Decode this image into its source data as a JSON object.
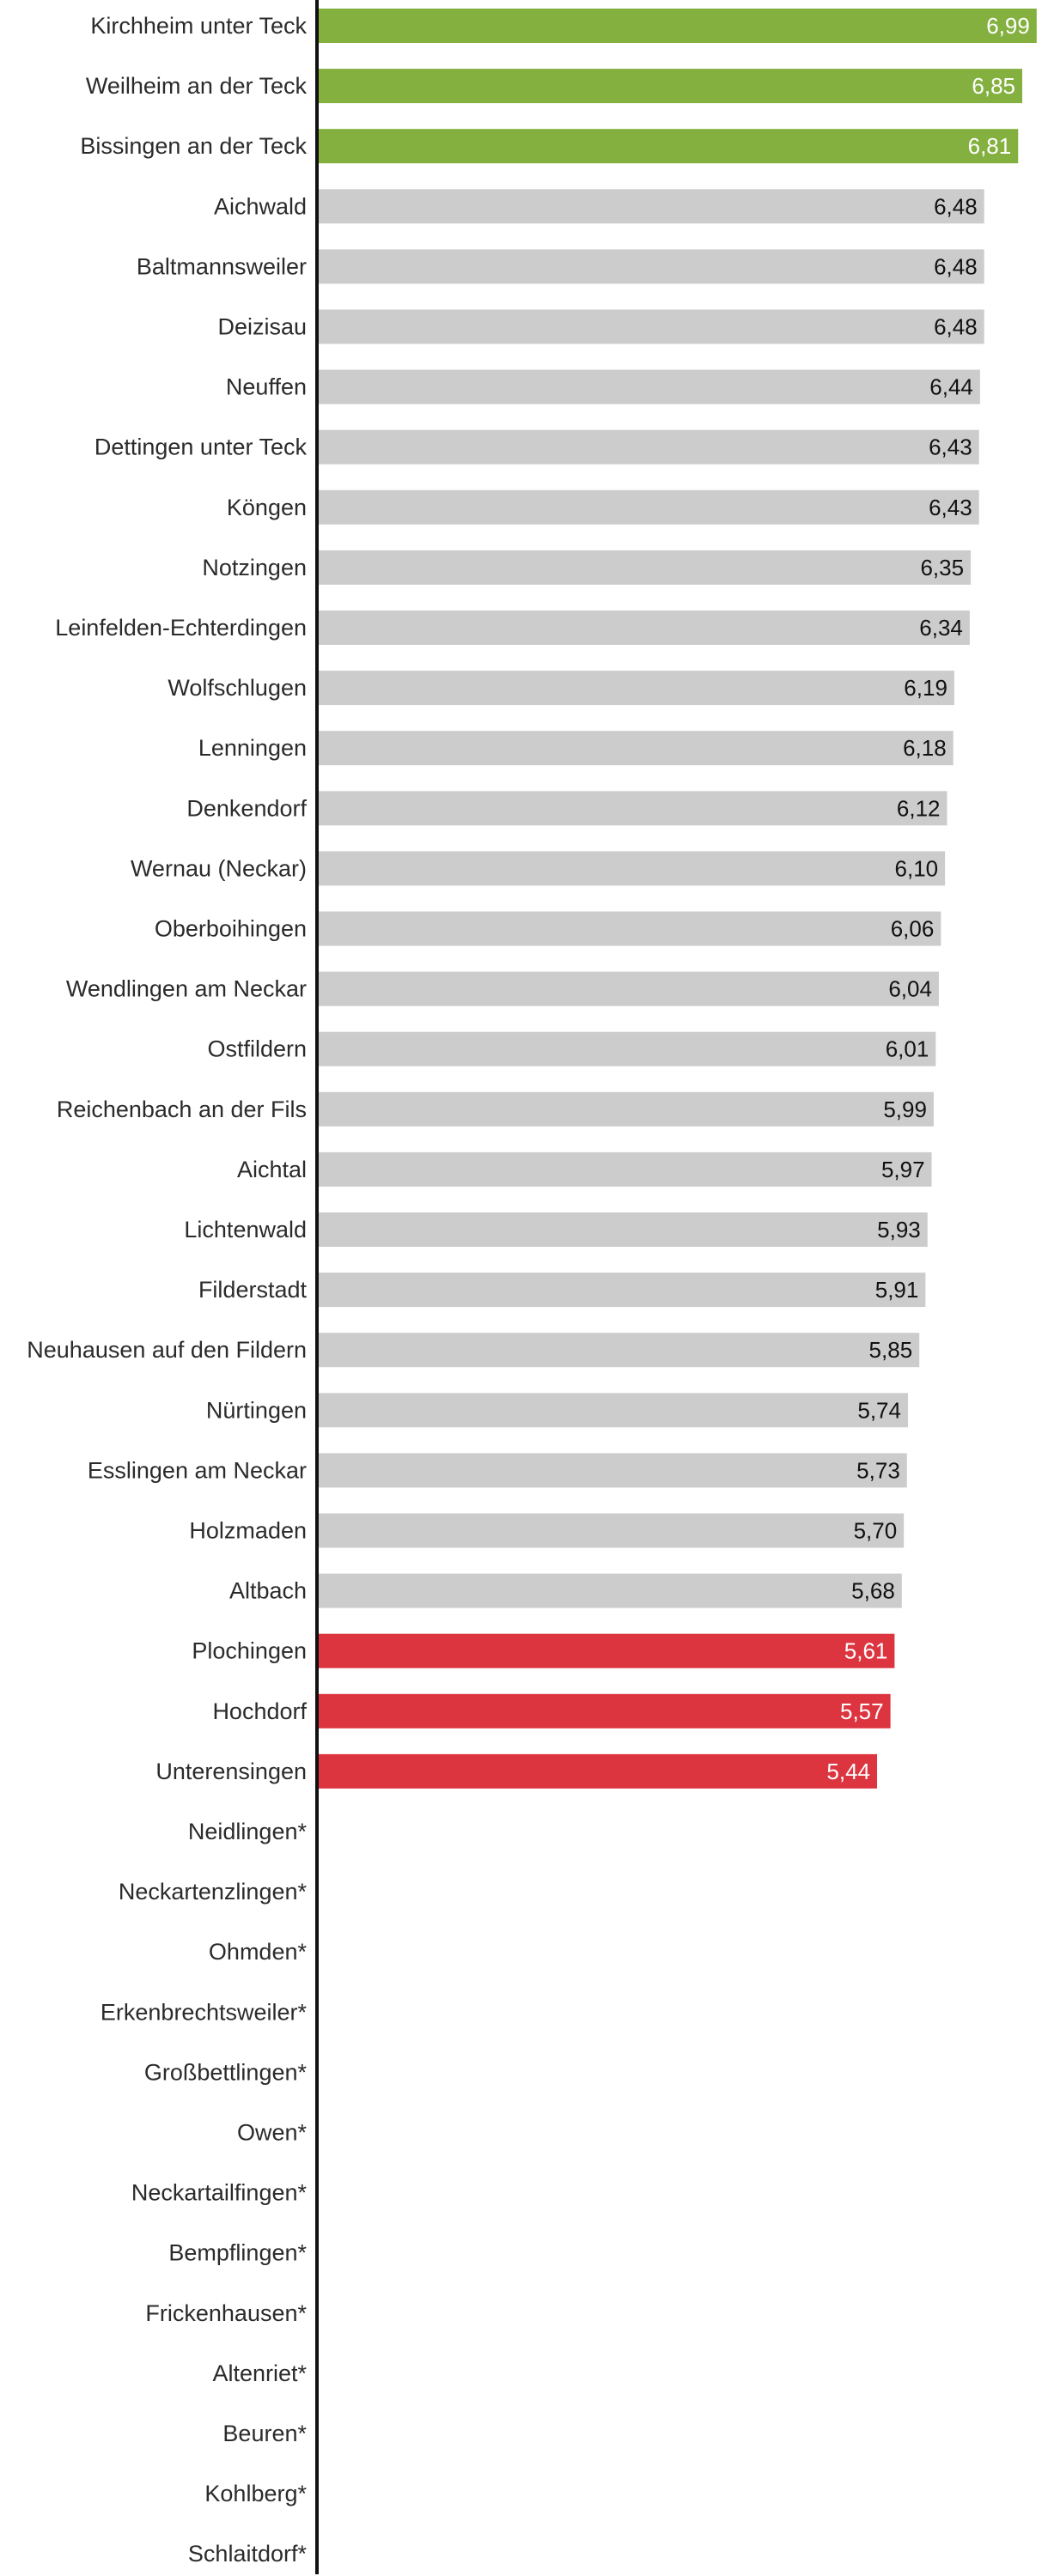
{
  "chart_data": {
    "type": "bar",
    "orientation": "horizontal",
    "title": "",
    "xlabel": "",
    "ylabel": "",
    "xlim": [
      0,
      7
    ],
    "grid": false,
    "legend": "none",
    "colors": {
      "top": "#84b040",
      "middle": "#cccccc",
      "bottom": "#dc3540",
      "axis": "#111111",
      "label_text": "#2b2b2b",
      "value_text_dark": "#111111",
      "value_text_light": "#ffffff"
    },
    "bars": [
      {
        "category": "Kirchheim unter Teck",
        "value": 6.99,
        "display": "6,99",
        "group": "top"
      },
      {
        "category": "Weilheim an der Teck",
        "value": 6.85,
        "display": "6,85",
        "group": "top"
      },
      {
        "category": "Bissingen an der Teck",
        "value": 6.81,
        "display": "6,81",
        "group": "top"
      },
      {
        "category": "Aichwald",
        "value": 6.48,
        "display": "6,48",
        "group": "middle"
      },
      {
        "category": "Baltmannsweiler",
        "value": 6.48,
        "display": "6,48",
        "group": "middle"
      },
      {
        "category": "Deizisau",
        "value": 6.48,
        "display": "6,48",
        "group": "middle"
      },
      {
        "category": "Neuffen",
        "value": 6.44,
        "display": "6,44",
        "group": "middle"
      },
      {
        "category": "Dettingen unter Teck",
        "value": 6.43,
        "display": "6,43",
        "group": "middle"
      },
      {
        "category": "Köngen",
        "value": 6.43,
        "display": "6,43",
        "group": "middle"
      },
      {
        "category": "Notzingen",
        "value": 6.35,
        "display": "6,35",
        "group": "middle"
      },
      {
        "category": "Leinfelden-Echterdingen",
        "value": 6.34,
        "display": "6,34",
        "group": "middle"
      },
      {
        "category": "Wolfschlugen",
        "value": 6.19,
        "display": "6,19",
        "group": "middle"
      },
      {
        "category": "Lenningen",
        "value": 6.18,
        "display": "6,18",
        "group": "middle"
      },
      {
        "category": "Denkendorf",
        "value": 6.12,
        "display": "6,12",
        "group": "middle"
      },
      {
        "category": "Wernau (Neckar)",
        "value": 6.1,
        "display": "6,10",
        "group": "middle"
      },
      {
        "category": "Oberboihingen",
        "value": 6.06,
        "display": "6,06",
        "group": "middle"
      },
      {
        "category": "Wendlingen am Neckar",
        "value": 6.04,
        "display": "6,04",
        "group": "middle"
      },
      {
        "category": "Ostfildern",
        "value": 6.01,
        "display": "6,01",
        "group": "middle"
      },
      {
        "category": "Reichenbach an der Fils",
        "value": 5.99,
        "display": "5,99",
        "group": "middle"
      },
      {
        "category": "Aichtal",
        "value": 5.97,
        "display": "5,97",
        "group": "middle"
      },
      {
        "category": "Lichtenwald",
        "value": 5.93,
        "display": "5,93",
        "group": "middle"
      },
      {
        "category": "Filderstadt",
        "value": 5.91,
        "display": "5,91",
        "group": "middle"
      },
      {
        "category": "Neuhausen auf den Fildern",
        "value": 5.85,
        "display": "5,85",
        "group": "middle"
      },
      {
        "category": "Nürtingen",
        "value": 5.74,
        "display": "5,74",
        "group": "middle"
      },
      {
        "category": "Esslingen am Neckar",
        "value": 5.73,
        "display": "5,73",
        "group": "middle"
      },
      {
        "category": "Holzmaden",
        "value": 5.7,
        "display": "5,70",
        "group": "middle"
      },
      {
        "category": "Altbach",
        "value": 5.68,
        "display": "5,68",
        "group": "middle"
      },
      {
        "category": "Plochingen",
        "value": 5.61,
        "display": "5,61",
        "group": "bottom"
      },
      {
        "category": "Hochdorf",
        "value": 5.57,
        "display": "5,57",
        "group": "bottom"
      },
      {
        "category": "Unterensingen",
        "value": 5.44,
        "display": "5,44",
        "group": "bottom"
      },
      {
        "category": "Neidlingen*",
        "value": null,
        "display": "",
        "group": "none"
      },
      {
        "category": "Neckartenzlingen*",
        "value": null,
        "display": "",
        "group": "none"
      },
      {
        "category": "Ohmden*",
        "value": null,
        "display": "",
        "group": "none"
      },
      {
        "category": "Erkenbrechtsweiler*",
        "value": null,
        "display": "",
        "group": "none"
      },
      {
        "category": "Großbettlingen*",
        "value": null,
        "display": "",
        "group": "none"
      },
      {
        "category": "Owen*",
        "value": null,
        "display": "",
        "group": "none"
      },
      {
        "category": "Neckartailfingen*",
        "value": null,
        "display": "",
        "group": "none"
      },
      {
        "category": "Bempflingen*",
        "value": null,
        "display": "",
        "group": "none"
      },
      {
        "category": "Frickenhausen*",
        "value": null,
        "display": "",
        "group": "none"
      },
      {
        "category": "Altenriet*",
        "value": null,
        "display": "",
        "group": "none"
      },
      {
        "category": "Beuren*",
        "value": null,
        "display": "",
        "group": "none"
      },
      {
        "category": "Kohlberg*",
        "value": null,
        "display": "",
        "group": "none"
      },
      {
        "category": "Schlaitdorf*",
        "value": null,
        "display": "",
        "group": "none"
      }
    ]
  }
}
